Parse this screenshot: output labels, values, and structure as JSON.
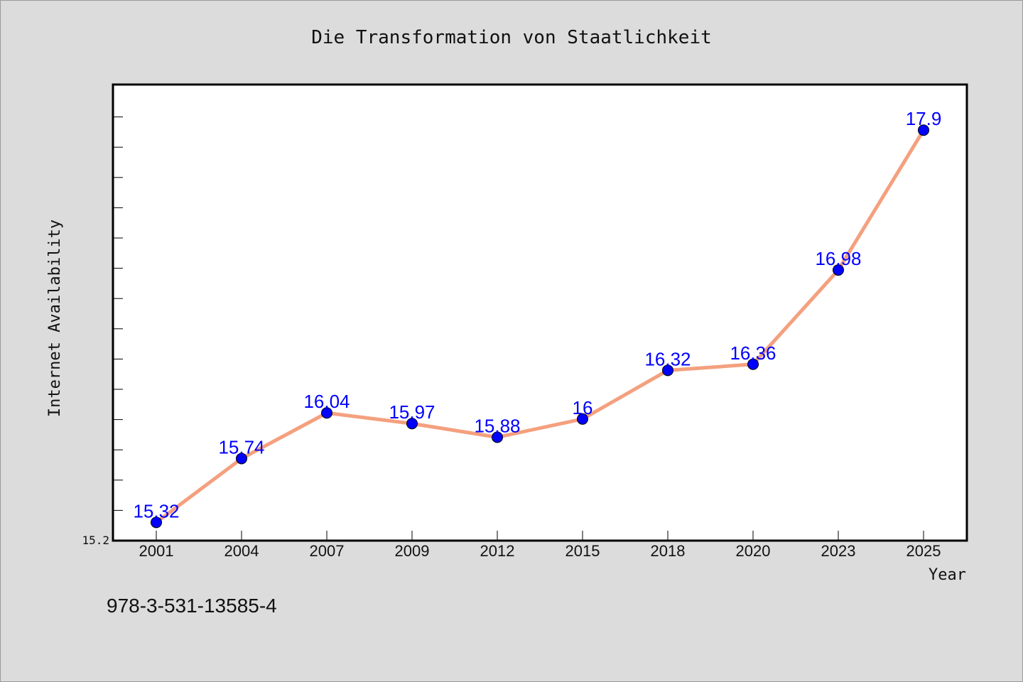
{
  "chart_data": {
    "type": "line",
    "title": "Die Transformation von Staatlichkeit",
    "xlabel": "Year",
    "ylabel": "Internet Availability",
    "categories": [
      "2001",
      "2004",
      "2007",
      "2009",
      "2012",
      "2015",
      "2018",
      "2020",
      "2023",
      "2025"
    ],
    "series": [
      {
        "values": [
          15.32,
          15.74,
          16.04,
          15.97,
          15.88,
          16.0,
          16.32,
          16.36,
          16.98,
          17.9
        ],
        "data_labels": [
          "15.32",
          "15.74",
          "16.04",
          "15.97",
          "15.88",
          "16",
          "16.32",
          "16.36",
          "16.98",
          "17.9"
        ],
        "line_color": "#f4a07e",
        "marker_color": "#0000ff"
      }
    ],
    "ylim": [
      15.2,
      18.2
    ],
    "y_tick_label": "15.2",
    "grid": false,
    "legend": "none"
  },
  "footer": {
    "isbn": "978-3-531-13585-4"
  }
}
